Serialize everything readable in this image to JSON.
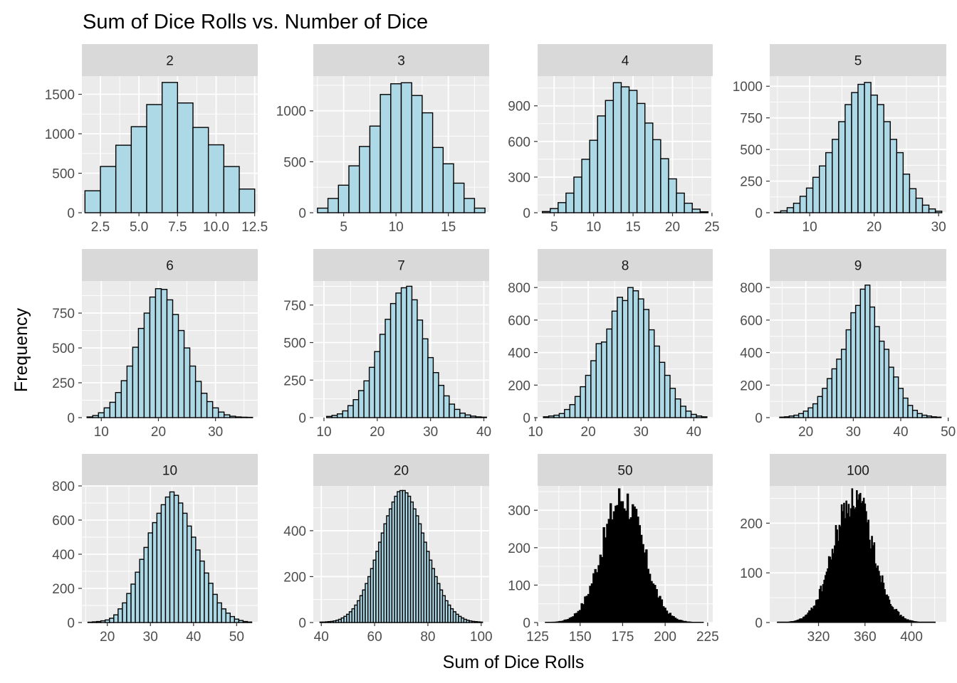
{
  "title": "Sum of Dice Rolls vs. Number of Dice",
  "xlabel": "Sum of Dice Rolls",
  "ylabel": "Frequency",
  "colors": {
    "fill": "#add8e6",
    "stroke": "#000000",
    "panel": "#ebebeb",
    "strip": "#d9d9d9",
    "grid": "#ffffff",
    "tick_text": "#4d4d4d"
  },
  "chart_data": [
    {
      "type": "bar",
      "facet": "2",
      "x": [
        2,
        3,
        4,
        5,
        6,
        7,
        8,
        9,
        10,
        11,
        12
      ],
      "values": [
        278,
        586,
        855,
        1090,
        1370,
        1650,
        1390,
        1080,
        860,
        585,
        300
      ],
      "xlim": [
        1.3,
        12.7
      ],
      "ylim": [
        0,
        1730
      ],
      "xticks": [
        2.5,
        5,
        7.5,
        10,
        12.5
      ],
      "xticklabels": [
        "2.5",
        "5.0",
        "7.5",
        "10.0",
        "12.5"
      ],
      "yticks": [
        0,
        500,
        1000,
        1500
      ],
      "yticklabels": [
        "0",
        "500",
        "1000",
        "1500"
      ]
    },
    {
      "type": "bar",
      "facet": "3",
      "x": [
        3,
        4,
        5,
        6,
        7,
        8,
        9,
        10,
        11,
        12,
        13,
        14,
        15,
        16,
        17,
        18
      ],
      "values": [
        45,
        140,
        270,
        460,
        650,
        850,
        1160,
        1265,
        1275,
        1150,
        980,
        640,
        480,
        290,
        140,
        45
      ],
      "xlim": [
        2.1,
        18.9
      ],
      "ylim": [
        0,
        1340
      ],
      "xticks": [
        5,
        10,
        15
      ],
      "xticklabels": [
        "5",
        "10",
        "15"
      ],
      "yticks": [
        0,
        500,
        1000
      ],
      "yticklabels": [
        "0",
        "500",
        "1000"
      ]
    },
    {
      "type": "bar",
      "facet": "4",
      "x": [
        4,
        5,
        6,
        7,
        8,
        9,
        10,
        11,
        12,
        13,
        14,
        15,
        16,
        17,
        18,
        19,
        20,
        21,
        22,
        23,
        24
      ],
      "values": [
        10,
        35,
        85,
        165,
        300,
        450,
        610,
        815,
        945,
        1095,
        1060,
        1030,
        920,
        755,
        615,
        455,
        285,
        165,
        80,
        30,
        8
      ],
      "xlim": [
        2.9,
        25.1
      ],
      "ylim": [
        0,
        1150
      ],
      "xticks": [
        5,
        10,
        15,
        20,
        25
      ],
      "xticklabels": [
        "5",
        "10",
        "15",
        "20",
        "25"
      ],
      "yticks": [
        0,
        300,
        600,
        900
      ],
      "yticklabels": [
        "0",
        "300",
        "600",
        "900"
      ]
    },
    {
      "type": "bar",
      "facet": "5",
      "x": [
        5,
        6,
        7,
        8,
        9,
        10,
        11,
        12,
        13,
        14,
        15,
        16,
        17,
        18,
        19,
        20,
        21,
        22,
        23,
        24,
        25,
        26,
        27,
        28,
        29,
        30
      ],
      "values": [
        3,
        15,
        40,
        75,
        130,
        195,
        280,
        370,
        475,
        580,
        720,
        855,
        950,
        1015,
        1030,
        930,
        855,
        720,
        580,
        475,
        305,
        190,
        115,
        60,
        30,
        12
      ],
      "xlim": [
        3.8,
        31.2
      ],
      "ylim": [
        0,
        1080
      ],
      "xticks": [
        10,
        20,
        30
      ],
      "xticklabels": [
        "10",
        "20",
        "30"
      ],
      "yticks": [
        0,
        250,
        500,
        750,
        1000
      ],
      "yticklabels": [
        "0",
        "250",
        "500",
        "750",
        "1000"
      ]
    },
    {
      "type": "bar",
      "facet": "6",
      "x": [
        8,
        9,
        10,
        11,
        12,
        13,
        14,
        15,
        16,
        17,
        18,
        19,
        20,
        21,
        22,
        23,
        24,
        25,
        26,
        27,
        28,
        29,
        30,
        31,
        32,
        33,
        34,
        35,
        36
      ],
      "values": [
        5,
        15,
        35,
        70,
        110,
        180,
        265,
        370,
        505,
        640,
        750,
        865,
        925,
        920,
        845,
        740,
        625,
        500,
        370,
        260,
        175,
        115,
        70,
        40,
        20,
        10,
        5,
        3,
        2
      ],
      "xlim": [
        6.6,
        37.4
      ],
      "ylim": [
        0,
        980
      ],
      "xticks": [
        10,
        20,
        30
      ],
      "xticklabels": [
        "10",
        "20",
        "30"
      ],
      "yticks": [
        0,
        250,
        500,
        750
      ],
      "yticklabels": [
        "0",
        "250",
        "500",
        "750"
      ]
    },
    {
      "type": "bar",
      "facet": "7",
      "x": [
        11,
        12,
        13,
        14,
        15,
        16,
        17,
        18,
        19,
        20,
        21,
        22,
        23,
        24,
        25,
        26,
        27,
        28,
        29,
        30,
        31,
        32,
        33,
        34,
        35,
        36,
        37,
        38,
        39,
        40
      ],
      "values": [
        8,
        15,
        25,
        45,
        80,
        120,
        180,
        245,
        335,
        440,
        555,
        655,
        760,
        830,
        865,
        875,
        785,
        650,
        525,
        400,
        300,
        215,
        145,
        90,
        55,
        30,
        18,
        10,
        5,
        3
      ],
      "xlim": [
        8,
        41
      ],
      "ylim": [
        0,
        910
      ],
      "xticks": [
        10,
        20,
        30,
        40
      ],
      "xticklabels": [
        "10",
        "20",
        "30",
        "40"
      ],
      "yticks": [
        0,
        250,
        500,
        750
      ],
      "yticklabels": [
        "0",
        "250",
        "500",
        "750"
      ]
    },
    {
      "type": "bar",
      "facet": "8",
      "x": [
        12,
        13,
        14,
        15,
        16,
        17,
        18,
        19,
        20,
        21,
        22,
        23,
        24,
        25,
        26,
        27,
        28,
        29,
        30,
        31,
        32,
        33,
        34,
        35,
        36,
        37,
        38,
        39,
        40,
        41,
        42
      ],
      "values": [
        5,
        10,
        15,
        25,
        50,
        80,
        130,
        190,
        260,
        350,
        455,
        465,
        545,
        655,
        740,
        720,
        800,
        780,
        730,
        665,
        540,
        440,
        340,
        260,
        180,
        115,
        70,
        40,
        20,
        10,
        5
      ],
      "xlim": [
        10.4,
        43.6
      ],
      "ylim": [
        0,
        840
      ],
      "xticks": [
        10,
        20,
        30,
        40
      ],
      "xticklabels": [
        "10",
        "20",
        "30",
        "40"
      ],
      "yticks": [
        0,
        200,
        400,
        600,
        800
      ],
      "yticklabels": [
        "0",
        "200",
        "400",
        "600",
        "800"
      ]
    },
    {
      "type": "bar",
      "facet": "9",
      "x": [
        15,
        16,
        17,
        18,
        19,
        20,
        21,
        22,
        23,
        24,
        25,
        26,
        27,
        28,
        29,
        30,
        31,
        32,
        33,
        34,
        35,
        36,
        37,
        38,
        39,
        40,
        41,
        42,
        43,
        44,
        45,
        46,
        47,
        48
      ],
      "values": [
        3,
        5,
        10,
        15,
        25,
        40,
        60,
        85,
        130,
        180,
        240,
        300,
        360,
        420,
        540,
        645,
        690,
        790,
        815,
        680,
        560,
        470,
        420,
        310,
        250,
        180,
        120,
        75,
        45,
        25,
        15,
        10,
        5,
        3
      ],
      "xlim": [
        12.4,
        49.6
      ],
      "ylim": [
        0,
        840
      ],
      "xticks": [
        20,
        30,
        40,
        50
      ],
      "xticklabels": [
        "20",
        "30",
        "40",
        "50"
      ],
      "yticks": [
        0,
        200,
        400,
        600,
        800
      ],
      "yticklabels": [
        "0",
        "200",
        "400",
        "600",
        "800"
      ]
    },
    {
      "type": "bar",
      "facet": "10",
      "x": [
        16,
        17,
        18,
        19,
        20,
        21,
        22,
        23,
        24,
        25,
        26,
        27,
        28,
        29,
        30,
        31,
        32,
        33,
        34,
        35,
        36,
        37,
        38,
        39,
        40,
        41,
        42,
        43,
        44,
        45,
        46,
        47,
        48,
        49,
        50,
        51,
        52,
        53
      ],
      "values": [
        2,
        4,
        6,
        10,
        15,
        25,
        45,
        80,
        115,
        170,
        225,
        295,
        370,
        440,
        525,
        585,
        640,
        690,
        735,
        765,
        745,
        700,
        640,
        565,
        500,
        425,
        360,
        290,
        230,
        165,
        115,
        80,
        55,
        35,
        20,
        12,
        6,
        3
      ],
      "xlim": [
        14.1,
        54.9
      ],
      "ylim": [
        0,
        800
      ],
      "xticks": [
        20,
        30,
        40,
        50
      ],
      "xticklabels": [
        "20",
        "30",
        "40",
        "50"
      ],
      "yticks": [
        0,
        200,
        400,
        600,
        800
      ],
      "yticklabels": [
        "0",
        "200",
        "400",
        "600",
        "800"
      ]
    },
    {
      "type": "bar",
      "facet": "20",
      "x": [
        40,
        41,
        42,
        43,
        44,
        45,
        46,
        47,
        48,
        49,
        50,
        51,
        52,
        53,
        54,
        55,
        56,
        57,
        58,
        59,
        60,
        61,
        62,
        63,
        64,
        65,
        66,
        67,
        68,
        69,
        70,
        71,
        72,
        73,
        74,
        75,
        76,
        77,
        78,
        79,
        80,
        81,
        82,
        83,
        84,
        85,
        86,
        87,
        88,
        89,
        90,
        91,
        92,
        93,
        94,
        95,
        96,
        97,
        98,
        99,
        100
      ],
      "values": [
        2,
        2,
        3,
        4,
        5,
        7,
        10,
        14,
        20,
        27,
        36,
        47,
        60,
        76,
        95,
        117,
        142,
        170,
        200,
        235,
        272,
        310,
        350,
        390,
        430,
        465,
        495,
        525,
        550,
        570,
        575,
        575,
        565,
        550,
        525,
        495,
        465,
        430,
        390,
        350,
        310,
        272,
        235,
        200,
        170,
        142,
        117,
        95,
        76,
        60,
        47,
        36,
        27,
        20,
        14,
        10,
        7,
        5,
        4,
        3,
        2
      ],
      "xlim": [
        37,
        103
      ],
      "ylim": [
        0,
        595
      ],
      "xticks": [
        40,
        60,
        80,
        100
      ],
      "xticklabels": [
        "40",
        "60",
        "80",
        "100"
      ],
      "yticks": [
        0,
        200,
        400
      ],
      "yticklabels": [
        "0",
        "200",
        "400"
      ]
    },
    {
      "type": "area",
      "facet": "50",
      "mean": 175,
      "sd": 12,
      "peak": 345,
      "xrange": [
        130,
        222
      ],
      "xlim": [
        125,
        228
      ],
      "ylim": [
        0,
        365
      ],
      "xticks": [
        125,
        150,
        175,
        200,
        225
      ],
      "xticklabels": [
        "125",
        "150",
        "175",
        "200",
        "225"
      ],
      "yticks": [
        0,
        100,
        200,
        300
      ],
      "yticklabels": [
        "0",
        "100",
        "200",
        "300"
      ]
    },
    {
      "type": "area",
      "facet": "100",
      "mean": 350,
      "sd": 17,
      "peak": 260,
      "xrange": [
        285,
        420
      ],
      "xlim": [
        278,
        430
      ],
      "ylim": [
        0,
        275
      ],
      "xticks": [
        320,
        360,
        400
      ],
      "xticklabels": [
        "320",
        "360",
        "400"
      ],
      "yticks": [
        0,
        100,
        200
      ],
      "yticklabels": [
        "0",
        "100",
        "200"
      ]
    }
  ]
}
